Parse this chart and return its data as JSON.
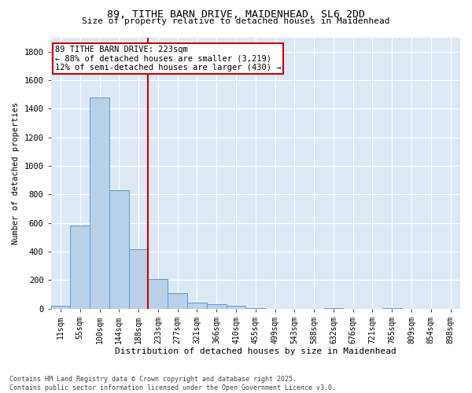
{
  "title_line1": "89, TITHE BARN DRIVE, MAIDENHEAD, SL6 2DD",
  "title_line2": "Size of property relative to detached houses in Maidenhead",
  "xlabel": "Distribution of detached houses by size in Maidenhead",
  "ylabel": "Number of detached properties",
  "categories": [
    "11sqm",
    "55sqm",
    "100sqm",
    "144sqm",
    "188sqm",
    "233sqm",
    "277sqm",
    "321sqm",
    "366sqm",
    "410sqm",
    "455sqm",
    "499sqm",
    "543sqm",
    "588sqm",
    "632sqm",
    "676sqm",
    "721sqm",
    "765sqm",
    "809sqm",
    "854sqm",
    "898sqm"
  ],
  "values": [
    20,
    580,
    1480,
    830,
    415,
    205,
    110,
    40,
    30,
    20,
    5,
    0,
    0,
    0,
    5,
    0,
    0,
    5,
    0,
    0,
    0
  ],
  "bar_color": "#b8d0e8",
  "bar_edge_color": "#5b9bd5",
  "vline_index": 5,
  "vline_color": "#cc0000",
  "annotation_text": "89 TITHE BARN DRIVE: 223sqm\n← 88% of detached houses are smaller (3,219)\n12% of semi-detached houses are larger (430) →",
  "annotation_box_color": "#ffffff",
  "annotation_box_edge_color": "#cc0000",
  "ylim": [
    0,
    1900
  ],
  "yticks": [
    0,
    200,
    400,
    600,
    800,
    1000,
    1200,
    1400,
    1600,
    1800
  ],
  "footnote": "Contains HM Land Registry data © Crown copyright and database right 2025.\nContains public sector information licensed under the Open Government Licence v3.0.",
  "plot_bg_color": "#dce9f5",
  "fig_bg_color": "#ffffff",
  "grid_color": "#ffffff"
}
